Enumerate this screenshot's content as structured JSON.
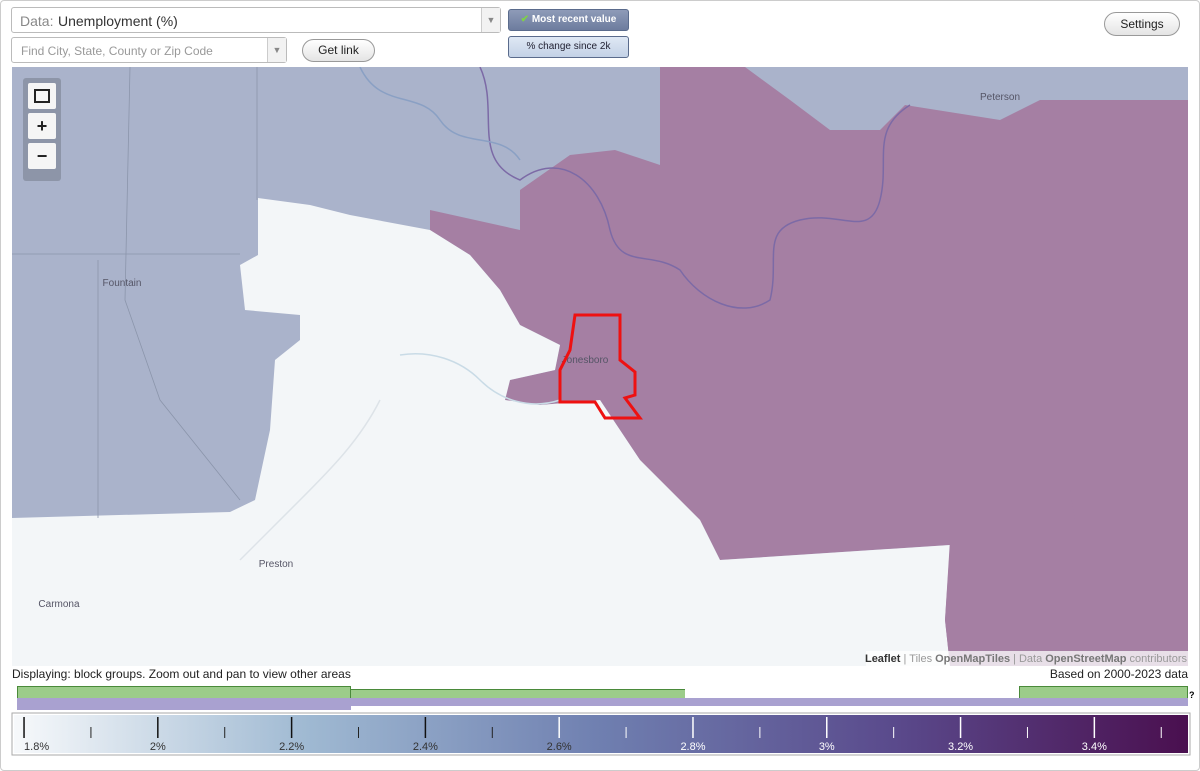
{
  "toolbar": {
    "data_label": "Data:",
    "data_value": "Unemployment (%)",
    "search_placeholder": "Find City, State, County or Zip Code",
    "get_link": "Get link",
    "mode_buttons": [
      "Most recent value",
      "% change since 2k"
    ],
    "settings": "Settings"
  },
  "map": {
    "place_labels": [
      "Peterson",
      "Fountain",
      "Jonesboro",
      "Preston",
      "Carmona"
    ],
    "attribution": [
      "Leaflet",
      "|",
      "Tiles",
      "OpenMapTiles",
      "|",
      "Data",
      "OpenStreetMap",
      "contributors"
    ]
  },
  "footer": {
    "displaying": "Displaying: block groups. Zoom out and pan to view other areas",
    "based_on": "Based on 2000-2023 data",
    "help": "?"
  },
  "legend": {
    "lim": [
      1.785,
      3.54
    ],
    "colors": [
      "#f7f9fb",
      "#9fb9d2",
      "#6f7fb0",
      "#5a4a8c",
      "#4a0f4f"
    ],
    "ticks": [
      {
        "value": 1.8,
        "label": "1.8%"
      },
      {
        "value": 2,
        "label": "2%"
      },
      {
        "value": 2.2,
        "label": "2.2%"
      },
      {
        "value": 2.4,
        "label": "2.4%"
      },
      {
        "value": 2.6,
        "label": "2.6%"
      },
      {
        "value": 2.8,
        "label": "2.8%"
      },
      {
        "value": 3,
        "label": "3%"
      },
      {
        "value": 3.2,
        "label": "3.2%"
      },
      {
        "value": 3.4,
        "label": "3.4%"
      }
    ],
    "minor_ticks": [
      1.9,
      2.1,
      2.3,
      2.5,
      2.7,
      2.9,
      3.1,
      3.3,
      3.5
    ]
  }
}
